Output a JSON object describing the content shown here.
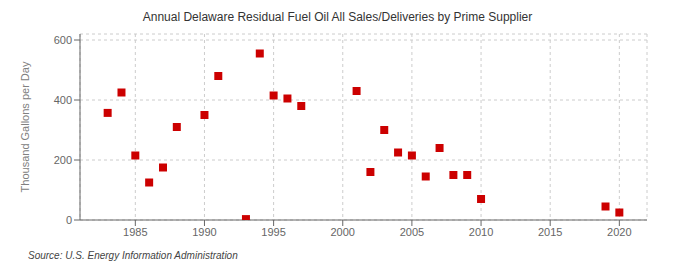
{
  "chart_data": {
    "type": "scatter",
    "title": "Annual Delaware Residual Fuel Oil All Sales/Deliveries by Prime Supplier",
    "ylabel": "Thousand Gallons per Day",
    "annotation": "Source: U.S. Energy Information Administration",
    "x": [
      1983,
      1984,
      1985,
      1986,
      1987,
      1988,
      1990,
      1991,
      1993,
      1994,
      1995,
      1996,
      1997,
      2001,
      2002,
      2003,
      2004,
      2005,
      2006,
      2007,
      2008,
      2009,
      2010,
      2019,
      2020
    ],
    "values": [
      357,
      425,
      215,
      125,
      175,
      310,
      350,
      480,
      3,
      555,
      415,
      405,
      380,
      430,
      160,
      300,
      225,
      215,
      145,
      240,
      150,
      150,
      70,
      45,
      25
    ],
    "color": "#cc0000",
    "marker": "square",
    "xlim": [
      1981,
      2022
    ],
    "ylim": [
      0,
      620
    ],
    "xticks": [
      1985,
      1990,
      1995,
      2000,
      2005,
      2010,
      2015,
      2020
    ],
    "yticks": [
      0,
      200,
      400,
      600
    ],
    "grid": true
  }
}
